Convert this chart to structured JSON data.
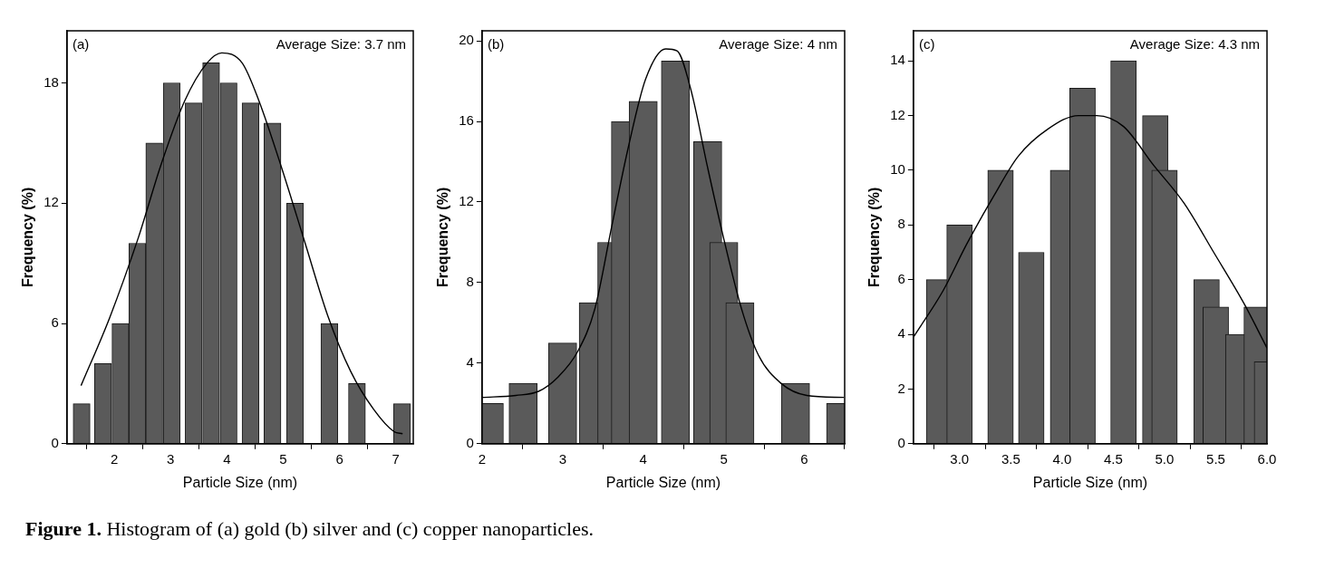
{
  "chart_data": [
    {
      "type": "bar",
      "xlabel": "Particle Size (nm)",
      "ylabel": "Frequency (%)",
      "xlim": [
        1.16,
        7.31
      ],
      "xticks": [
        2,
        3,
        4,
        5,
        6,
        7
      ],
      "ylim": [
        0,
        20.6
      ],
      "yticks": [
        0,
        6,
        12,
        18
      ],
      "grid": false,
      "legend": false,
      "marker": "none",
      "line_style": "solid",
      "annotations": [
        "(a)",
        "Average Size: 3.7 nm",
        "Figure 1. Histogram of (a) gold (b) silver and (c) copper nanoparticles."
      ],
      "series": [
        {
          "color": "#5a5a5a",
          "x": [
            1.42,
            1.8,
            2.11,
            2.41,
            2.71,
            3.02,
            3.41,
            3.72,
            4.03,
            4.42,
            4.81,
            5.21,
            5.82,
            6.31,
            7.11
          ],
          "values": [
            2,
            4,
            6,
            10,
            15,
            18,
            17,
            19,
            18,
            17,
            16,
            12,
            6,
            3,
            2
          ]
        },
        {
          "type": "line",
          "color": "#000000",
          "x": [
            1.41,
            1.92,
            2.43,
            2.84,
            3.25,
            3.65,
            3.91,
            4.27,
            4.57,
            4.98,
            5.39,
            5.79,
            6.2,
            6.61,
            6.97,
            7.12
          ],
          "values": [
            2.9,
            6.3,
            10.3,
            14,
            17.1,
            19,
            19.5,
            19,
            17.1,
            13.7,
            10,
            6.4,
            3.6,
            1.7,
            0.6,
            0.5
          ]
        }
      ]
    },
    {
      "type": "bar",
      "xlabel": "Particle Size (nm)",
      "ylabel": "Frequency (%)",
      "xlim": [
        2,
        6.5
      ],
      "xticks": [
        2,
        3,
        4,
        5,
        6
      ],
      "ylim": [
        0,
        20.5
      ],
      "yticks": [
        0,
        4,
        8,
        12,
        16,
        20
      ],
      "grid": false,
      "legend": false,
      "marker": "none",
      "line_style": "solid",
      "annotations": [
        "(b)",
        "Average Size: 4 nm"
      ],
      "series": [
        {
          "color": "#5a5a5a",
          "x": [
            2.09,
            2.51,
            3.0,
            3.38,
            3.61,
            3.78,
            4.0,
            4.4,
            4.8,
            5.0,
            5.2,
            5.89,
            6.45
          ],
          "values": [
            2,
            3,
            5,
            7,
            10,
            16,
            17,
            19,
            15,
            10,
            7,
            3,
            2
          ]
        },
        {
          "type": "line",
          "color": "#000000",
          "x": [
            2.0,
            2.42,
            2.7,
            2.94,
            3.19,
            3.4,
            3.61,
            3.82,
            4.03,
            4.28,
            4.42,
            4.59,
            4.8,
            5.01,
            5.22,
            5.43,
            5.71,
            6.03,
            6.49
          ],
          "values": [
            2.3,
            2.4,
            2.6,
            3.3,
            4.6,
            6.7,
            10.8,
            14.8,
            18.1,
            19.6,
            19.5,
            17.6,
            13.7,
            10,
            6.7,
            4.4,
            3,
            2.4,
            2.3
          ]
        }
      ]
    },
    {
      "type": "bar",
      "xlabel": "Particle Size (nm)",
      "ylabel": "Frequency (%)",
      "xlim": [
        2.55,
        6.0
      ],
      "xticks": [
        {
          "value": 3,
          "label": "3.0"
        },
        3.5,
        {
          "value": 4,
          "label": "4.0"
        },
        4.5,
        {
          "value": 5,
          "label": "5.0"
        },
        5.5,
        {
          "value": 6,
          "label": "6.0"
        }
      ],
      "ylim": [
        0,
        15.1
      ],
      "yticks": [
        0,
        2,
        4,
        6,
        8,
        10,
        12,
        14
      ],
      "grid": false,
      "legend": false,
      "marker": "none",
      "line_style": "solid",
      "annotations": [
        "(c)",
        "Average Size: 4.3 nm"
      ],
      "series": [
        {
          "color": "#5a5a5a",
          "x": [
            2.8,
            3.0,
            3.4,
            3.7,
            4.01,
            4.2,
            4.6,
            4.91,
            5.0,
            5.41,
            5.5,
            5.72,
            5.9,
            6.0
          ],
          "values": [
            6,
            8,
            10,
            7,
            10,
            13,
            14,
            12,
            10,
            6,
            5,
            4,
            5,
            3
          ]
        },
        {
          "type": "line",
          "color": "#000000",
          "x": [
            2.55,
            2.84,
            3.07,
            3.34,
            3.57,
            3.86,
            4.16,
            4.34,
            4.6,
            4.89,
            5.19,
            5.48,
            5.78,
            6.0
          ],
          "values": [
            3.9,
            5.6,
            7.3,
            9.1,
            10.5,
            11.5,
            12,
            12,
            11.6,
            10.2,
            8.8,
            7,
            5.1,
            3.5
          ]
        }
      ]
    }
  ]
}
